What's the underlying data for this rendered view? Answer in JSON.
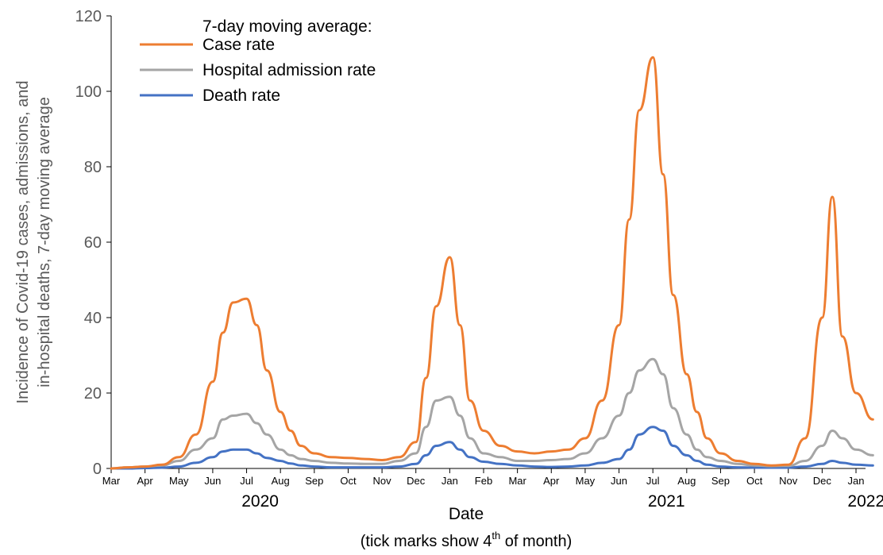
{
  "chart_data": {
    "type": "line",
    "legend_title": "7-day moving average:",
    "legend_position": "top-left",
    "ylabel_line1": "Incidence of Covid-19 cases, admissions, and",
    "ylabel_line2": "in-hospital deaths, 7-day moving average",
    "xlabel": "Date",
    "x_note_prefix": "(tick marks show 4",
    "x_note_sup": "th",
    "x_note_suffix": " of month)",
    "ylim": [
      0,
      120
    ],
    "yticks": [
      "0",
      "20",
      "40",
      "60",
      "80",
      "100",
      "120"
    ],
    "month_ticks": [
      "Mar",
      "Apr",
      "May",
      "Jun",
      "Jul",
      "Aug",
      "Sep",
      "Oct",
      "Nov",
      "Dec",
      "Jan",
      "Feb",
      "Mar",
      "Apr",
      "May",
      "Jun",
      "Jul",
      "Aug",
      "Sep",
      "Oct",
      "Nov",
      "Dec",
      "Jan"
    ],
    "years": [
      "2020",
      "2021",
      "2022"
    ],
    "x_month_index": [
      0,
      0.5,
      1,
      1.5,
      2,
      2.5,
      3,
      3.3,
      3.6,
      4,
      4.3,
      4.6,
      5,
      5.3,
      5.6,
      6,
      6.5,
      7,
      7.5,
      8,
      8.5,
      9,
      9.3,
      9.6,
      10,
      10.3,
      10.6,
      11,
      11.5,
      12,
      12.5,
      13,
      13.5,
      14,
      14.5,
      15,
      15.3,
      15.6,
      16,
      16.3,
      16.6,
      17,
      17.3,
      17.6,
      18,
      18.5,
      19,
      19.5,
      20,
      20.5,
      21,
      21.3,
      21.6,
      22,
      22.5
    ],
    "series": [
      {
        "name": "Case rate",
        "color": "#ED7D31",
        "values": [
          0,
          0.3,
          0.5,
          1,
          3,
          9,
          23,
          36,
          44,
          45,
          38,
          26,
          15,
          10,
          6,
          4,
          3,
          2.8,
          2.5,
          2.2,
          3,
          7,
          24,
          43,
          56,
          38,
          18,
          10,
          6,
          4.5,
          4,
          4.5,
          5,
          8,
          18,
          38,
          66,
          95,
          109,
          78,
          46,
          25,
          15,
          8,
          4,
          2,
          1.2,
          0.8,
          1,
          8,
          40,
          72,
          35,
          20,
          13
        ]
      },
      {
        "name": "Hospital admission rate",
        "color": "#A5A5A5",
        "values": [
          0,
          0.3,
          0.5,
          0.8,
          2,
          5,
          8,
          13,
          14,
          14.5,
          12,
          9,
          5,
          3.5,
          2.5,
          2,
          1.5,
          1.3,
          1.2,
          1.2,
          2,
          4,
          11,
          18,
          19,
          14,
          8,
          4,
          3,
          2,
          2,
          2.2,
          2.5,
          4,
          8,
          14,
          20,
          26,
          29,
          25,
          16,
          9,
          5,
          3,
          2,
          1.2,
          0.8,
          0.6,
          0.7,
          2,
          6,
          10,
          8,
          5,
          3.5
        ]
      },
      {
        "name": "Death rate",
        "color": "#4472C4",
        "values": [
          0,
          0,
          0.1,
          0.2,
          0.5,
          1.5,
          3,
          4.5,
          5,
          5,
          4,
          2.8,
          2,
          1.3,
          0.8,
          0.5,
          0.3,
          0.3,
          0.3,
          0.3,
          0.5,
          1.2,
          3.5,
          6,
          7,
          5,
          3,
          1.8,
          1.2,
          0.8,
          0.5,
          0.4,
          0.5,
          0.8,
          1.5,
          2.5,
          5,
          9,
          11,
          10,
          6,
          3.5,
          2,
          1,
          0.5,
          0.3,
          0.2,
          0.2,
          0.2,
          0.5,
          1.2,
          2,
          1.5,
          1,
          0.8
        ]
      }
    ]
  }
}
